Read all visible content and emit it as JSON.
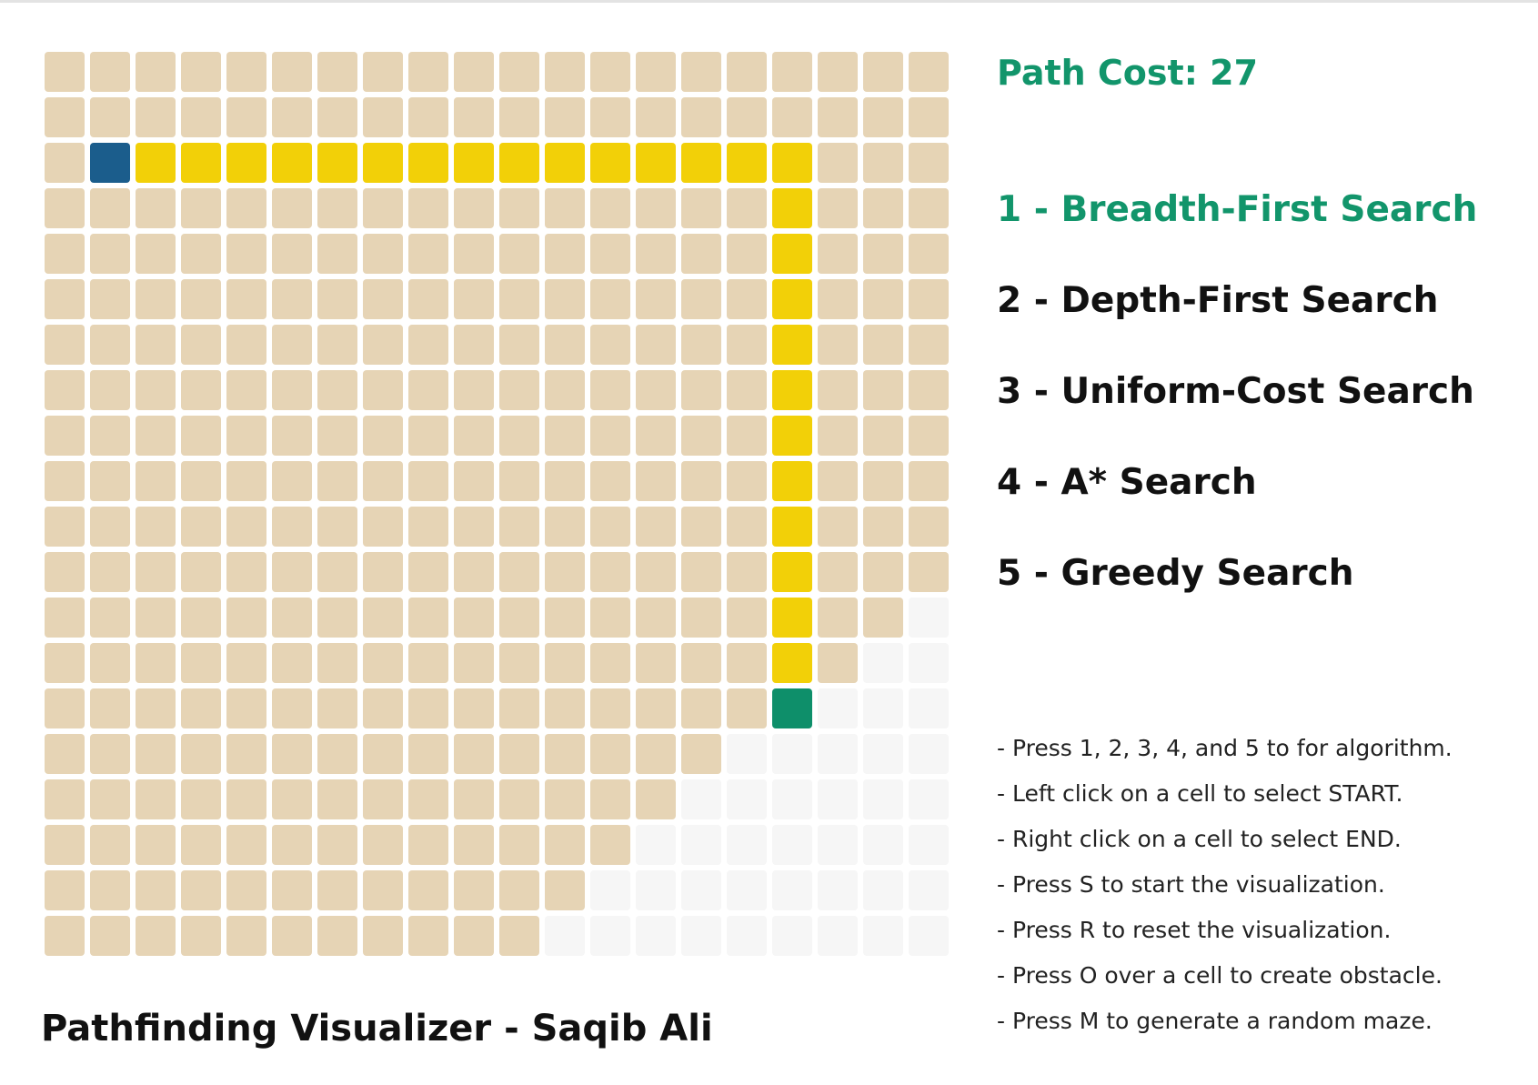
{
  "status": {
    "path_cost": "Path Cost: 27"
  },
  "algorithms": [
    {
      "label": "1 - Breadth-First Search",
      "active": true
    },
    {
      "label": "2 - Depth-First Search",
      "active": false
    },
    {
      "label": "3 - Uniform-Cost Search",
      "active": false
    },
    {
      "label": "4 - A* Search",
      "active": false
    },
    {
      "label": "5 - Greedy Search",
      "active": false
    }
  ],
  "instructions": [
    "- Press 1, 2, 3, 4, and 5 to for algorithm.",
    "- Left click on a cell to select START.",
    "- Right click on a cell to select END.",
    "- Press S to start the visualization.",
    "- Press R to reset the visualization.",
    "- Press O over a cell to create obstacle.",
    "- Press M to generate a random maze."
  ],
  "footer": {
    "title": "Pathfinding Visualizer - Saqib Ali"
  },
  "grid": {
    "rows": 20,
    "cols": 20,
    "start": [
      2,
      1
    ],
    "end": [
      14,
      16
    ],
    "path_row": 2,
    "path_row_cols": [
      2,
      16
    ],
    "path_col": 16,
    "path_col_rows": [
      3,
      13
    ],
    "visited_cols_per_row": [
      20,
      20,
      20,
      20,
      20,
      20,
      20,
      20,
      20,
      20,
      20,
      20,
      19,
      18,
      16,
      15,
      14,
      13,
      12,
      11
    ],
    "colors": {
      "unvisited": "#f6f6f6",
      "visited": "#e6d4b5",
      "path": "#f2d008",
      "start": "#1b5d8c",
      "end": "#0e8f6a",
      "active_text": "#12956b"
    }
  }
}
